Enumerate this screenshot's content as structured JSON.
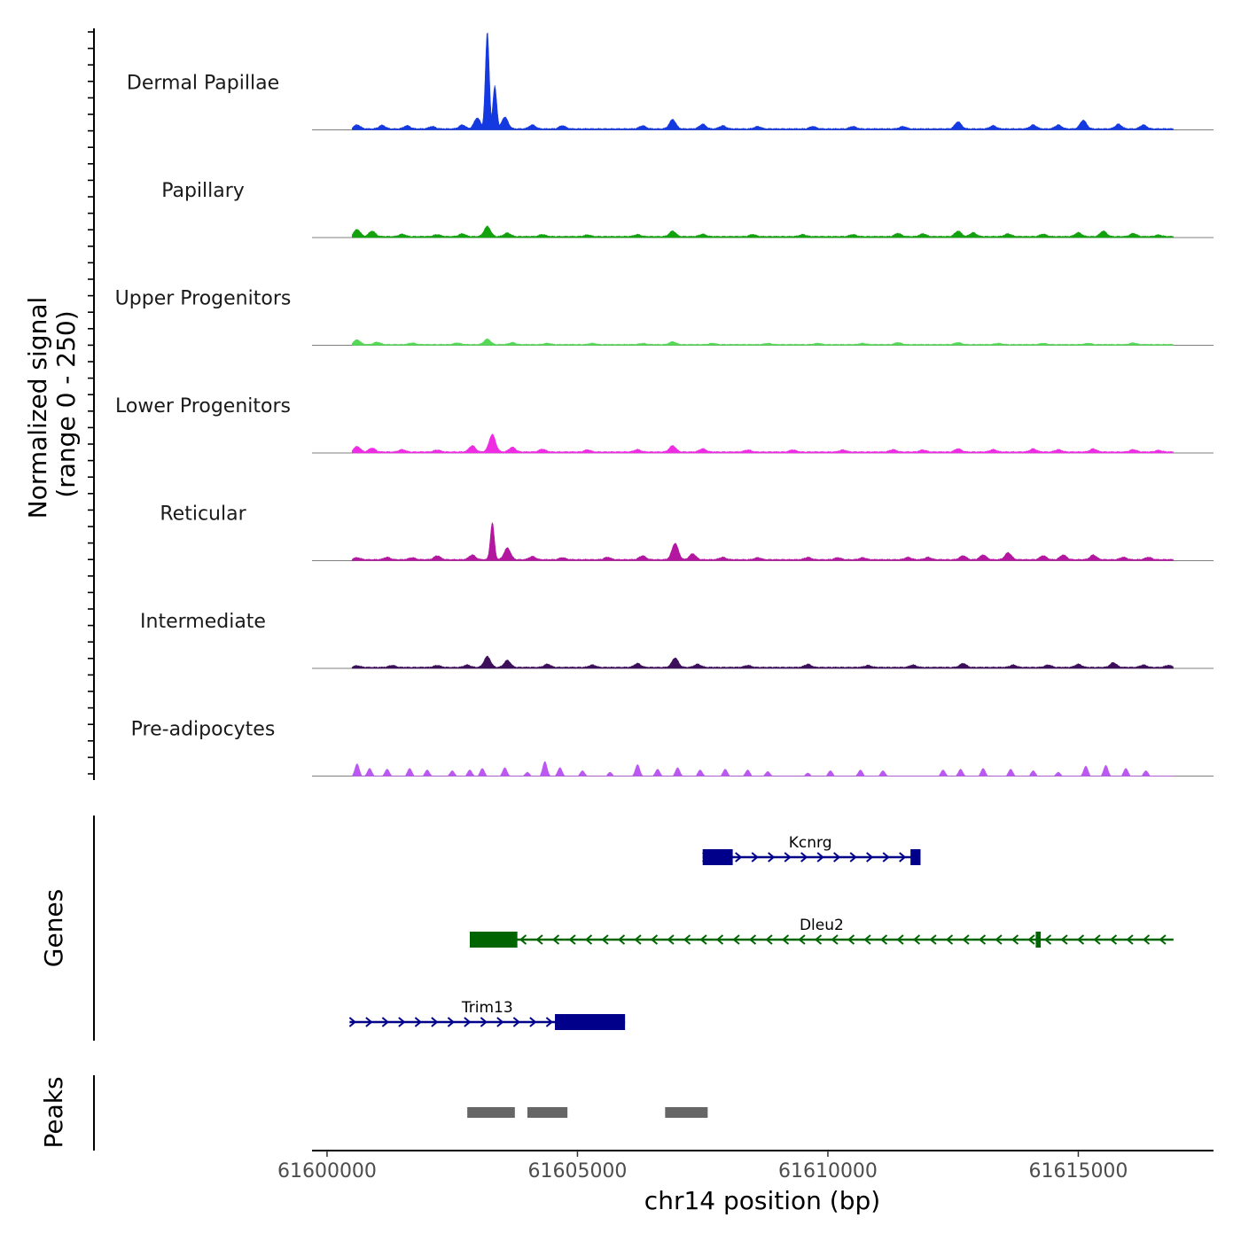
{
  "chart_data": {
    "type": "area",
    "title": "",
    "ylabel": "Normalized signal",
    "ylabel_range": "(range 0 - 250)",
    "xlabel": "chr14 position (bp)",
    "xlim": [
      61599700,
      61617700
    ],
    "ylim": [
      0,
      250
    ],
    "x_ticks": [
      61600000,
      61605000,
      61610000,
      61615000
    ],
    "x_tick_labels": [
      "61600000",
      "61605000",
      "61610000",
      "61615000"
    ],
    "signal_start": 61600500,
    "signal_end": 61616900,
    "tracks": [
      {
        "name": "Dermal Papillae",
        "color": "#1539E0",
        "peaks": [
          [
            61600600,
            10
          ],
          [
            61601100,
            9
          ],
          [
            61601600,
            8
          ],
          [
            61602100,
            6
          ],
          [
            61602700,
            10
          ],
          [
            61603000,
            28
          ],
          [
            61603200,
            250
          ],
          [
            61603350,
            110
          ],
          [
            61603550,
            30
          ],
          [
            61604100,
            10
          ],
          [
            61604700,
            8
          ],
          [
            61606300,
            8
          ],
          [
            61606900,
            24
          ],
          [
            61607500,
            12
          ],
          [
            61607900,
            8
          ],
          [
            61608600,
            6
          ],
          [
            61609700,
            6
          ],
          [
            61610500,
            6
          ],
          [
            61611500,
            6
          ],
          [
            61612600,
            18
          ],
          [
            61613300,
            8
          ],
          [
            61614100,
            10
          ],
          [
            61614600,
            10
          ],
          [
            61615100,
            22
          ],
          [
            61615800,
            12
          ],
          [
            61616300,
            10
          ]
        ]
      },
      {
        "name": "Papillary",
        "color": "#13A10E",
        "peaks": [
          [
            61600600,
            18
          ],
          [
            61600900,
            14
          ],
          [
            61601500,
            6
          ],
          [
            61602200,
            5
          ],
          [
            61602700,
            7
          ],
          [
            61603200,
            26
          ],
          [
            61603600,
            9
          ],
          [
            61604300,
            5
          ],
          [
            61605200,
            4
          ],
          [
            61606200,
            5
          ],
          [
            61606900,
            14
          ],
          [
            61607500,
            6
          ],
          [
            61608500,
            5
          ],
          [
            61609500,
            5
          ],
          [
            61610500,
            5
          ],
          [
            61611400,
            8
          ],
          [
            61611900,
            7
          ],
          [
            61612600,
            14
          ],
          [
            61612900,
            10
          ],
          [
            61613600,
            7
          ],
          [
            61614300,
            6
          ],
          [
            61615000,
            10
          ],
          [
            61615500,
            14
          ],
          [
            61616100,
            8
          ],
          [
            61616600,
            4
          ]
        ]
      },
      {
        "name": "Upper Progenitors",
        "color": "#55D855",
        "peaks": [
          [
            61600600,
            12
          ],
          [
            61601000,
            6
          ],
          [
            61601700,
            4
          ],
          [
            61602600,
            4
          ],
          [
            61603200,
            14
          ],
          [
            61603700,
            5
          ],
          [
            61604400,
            3
          ],
          [
            61605300,
            3
          ],
          [
            61606300,
            3
          ],
          [
            61606900,
            7
          ],
          [
            61607700,
            3
          ],
          [
            61608800,
            3
          ],
          [
            61609800,
            3
          ],
          [
            61610700,
            3
          ],
          [
            61611400,
            5
          ],
          [
            61612600,
            5
          ],
          [
            61613400,
            3
          ],
          [
            61614300,
            3
          ],
          [
            61615200,
            3
          ],
          [
            61616100,
            4
          ]
        ]
      },
      {
        "name": "Lower Progenitors",
        "color": "#EE2CE3",
        "peaks": [
          [
            61600600,
            14
          ],
          [
            61600900,
            10
          ],
          [
            61601500,
            6
          ],
          [
            61602200,
            5
          ],
          [
            61602900,
            16
          ],
          [
            61603300,
            45
          ],
          [
            61603700,
            12
          ],
          [
            61604300,
            7
          ],
          [
            61605200,
            5
          ],
          [
            61606200,
            6
          ],
          [
            61606900,
            16
          ],
          [
            61607500,
            8
          ],
          [
            61608400,
            5
          ],
          [
            61609300,
            5
          ],
          [
            61610300,
            5
          ],
          [
            61611300,
            6
          ],
          [
            61611900,
            5
          ],
          [
            61612600,
            8
          ],
          [
            61613300,
            6
          ],
          [
            61614100,
            8
          ],
          [
            61614600,
            6
          ],
          [
            61615300,
            8
          ],
          [
            61616100,
            6
          ],
          [
            61616600,
            4
          ]
        ]
      },
      {
        "name": "Reticular",
        "color": "#B3169F",
        "peaks": [
          [
            61600600,
            5
          ],
          [
            61601200,
            6
          ],
          [
            61601700,
            5
          ],
          [
            61602200,
            10
          ],
          [
            61602900,
            12
          ],
          [
            61603300,
            95
          ],
          [
            61603600,
            30
          ],
          [
            61604100,
            8
          ],
          [
            61604700,
            5
          ],
          [
            61605600,
            6
          ],
          [
            61606300,
            10
          ],
          [
            61606950,
            42
          ],
          [
            61607300,
            15
          ],
          [
            61607900,
            6
          ],
          [
            61608600,
            5
          ],
          [
            61609600,
            6
          ],
          [
            61610200,
            5
          ],
          [
            61610700,
            5
          ],
          [
            61611600,
            6
          ],
          [
            61612000,
            6
          ],
          [
            61612700,
            10
          ],
          [
            61613100,
            12
          ],
          [
            61613600,
            18
          ],
          [
            61614300,
            10
          ],
          [
            61614700,
            12
          ],
          [
            61615300,
            12
          ],
          [
            61615900,
            6
          ],
          [
            61616400,
            6
          ]
        ]
      },
      {
        "name": "Intermediate",
        "color": "#3D0F5A",
        "peaks": [
          [
            61600600,
            4
          ],
          [
            61601300,
            5
          ],
          [
            61602200,
            5
          ],
          [
            61602800,
            6
          ],
          [
            61603200,
            28
          ],
          [
            61603600,
            18
          ],
          [
            61604400,
            8
          ],
          [
            61605300,
            6
          ],
          [
            61606200,
            10
          ],
          [
            61606950,
            24
          ],
          [
            61607400,
            8
          ],
          [
            61608400,
            5
          ],
          [
            61609600,
            8
          ],
          [
            61610800,
            5
          ],
          [
            61611700,
            6
          ],
          [
            61612700,
            10
          ],
          [
            61613700,
            6
          ],
          [
            61614400,
            6
          ],
          [
            61615000,
            8
          ],
          [
            61615700,
            12
          ],
          [
            61616300,
            6
          ],
          [
            61616800,
            5
          ]
        ]
      },
      {
        "name": "Pre-adipocytes",
        "color": "#BC58F2",
        "peaks": [
          [
            61600600,
            32
          ],
          [
            61600850,
            20
          ],
          [
            61601200,
            18
          ],
          [
            61601650,
            20
          ],
          [
            61602000,
            16
          ],
          [
            61602500,
            14
          ],
          [
            61602850,
            16
          ],
          [
            61603100,
            20
          ],
          [
            61603550,
            22
          ],
          [
            61604000,
            10
          ],
          [
            61604350,
            38
          ],
          [
            61604650,
            22
          ],
          [
            61605100,
            14
          ],
          [
            61605650,
            10
          ],
          [
            61606200,
            30
          ],
          [
            61606600,
            18
          ],
          [
            61607000,
            22
          ],
          [
            61607450,
            16
          ],
          [
            61607950,
            18
          ],
          [
            61608400,
            16
          ],
          [
            61608800,
            12
          ],
          [
            61609600,
            8
          ],
          [
            61610050,
            14
          ],
          [
            61610650,
            16
          ],
          [
            61611100,
            14
          ],
          [
            61612300,
            16
          ],
          [
            61612650,
            18
          ],
          [
            61613100,
            20
          ],
          [
            61613650,
            18
          ],
          [
            61614100,
            14
          ],
          [
            61614600,
            10
          ],
          [
            61615150,
            26
          ],
          [
            61615550,
            28
          ],
          [
            61615950,
            20
          ],
          [
            61616350,
            14
          ]
        ]
      }
    ],
    "genes_label": "Genes",
    "genes": [
      {
        "name": "Kcnrg",
        "start": 61607500,
        "end": 61611800,
        "strand": "+",
        "color": "#00008B",
        "blocks": [
          [
            61607500,
            61608100
          ],
          [
            61611650,
            61611850
          ]
        ]
      },
      {
        "name": "Dleu2",
        "start": 61602850,
        "end": 61616900,
        "strand": "-",
        "color": "#006400",
        "blocks": [
          [
            61602850,
            61603800
          ],
          [
            61614150,
            61614250
          ]
        ]
      },
      {
        "name": "Trim13",
        "start": 61600450,
        "end": 61605950,
        "strand": "+",
        "color": "#00008B",
        "blocks": [
          [
            61604550,
            61605950
          ]
        ]
      }
    ],
    "peaks_label": "Peaks",
    "peak_regions": [
      [
        61602800,
        61603750
      ],
      [
        61604000,
        61604800
      ],
      [
        61606750,
        61607600
      ]
    ]
  }
}
